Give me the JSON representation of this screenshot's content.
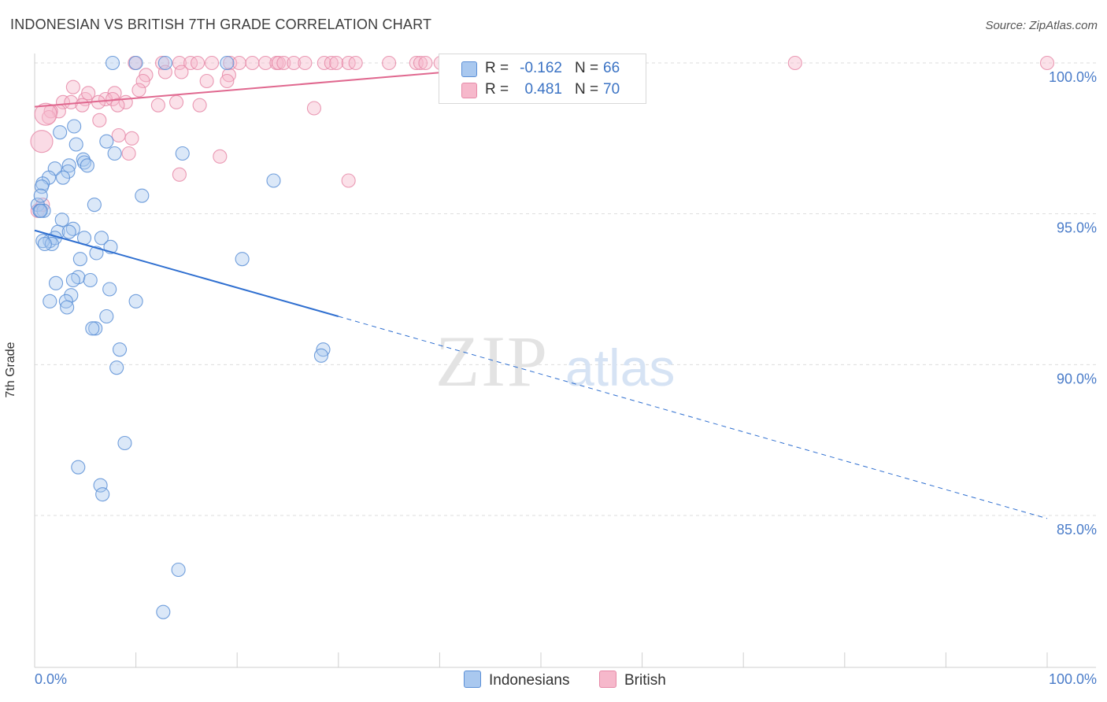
{
  "title": "INDONESIAN VS BRITISH 7TH GRADE CORRELATION CHART",
  "source": "Source: ZipAtlas.com",
  "watermark": {
    "zip": "ZIP",
    "atlas": "atlas"
  },
  "colors": {
    "blue_fill": "#a9c8ef",
    "blue_stroke": "#5b8fd6",
    "blue_line": "#2f6fd0",
    "pink_fill": "#f6b8cb",
    "pink_stroke": "#e68aa8",
    "pink_line": "#e0688f",
    "grid": "#dddddd",
    "tick_text": "#4a7cc9"
  },
  "legend": {
    "rows": [
      {
        "series": "Indonesians",
        "r_label": "R =",
        "r_value": "-0.162",
        "n_label": "N =",
        "n_value": "66",
        "color": "#a9c8ef",
        "border": "#5b8fd6"
      },
      {
        "series": "British",
        "r_label": "R =",
        "r_value": "0.481",
        "n_label": "N =",
        "n_value": "70",
        "color": "#f6b8cb",
        "border": "#e68aa8"
      }
    ]
  },
  "bottom_legend": [
    {
      "label": "Indonesians",
      "color": "#a9c8ef",
      "border": "#5b8fd6"
    },
    {
      "label": "British",
      "color": "#f6b8cb",
      "border": "#e68aa8"
    }
  ],
  "chart_data": {
    "type": "scatter",
    "title": "INDONESIAN VS BRITISH 7TH GRADE CORRELATION CHART",
    "xlabel": "",
    "ylabel": "7th Grade",
    "xlim": [
      0,
      100
    ],
    "ylim": [
      80.5,
      100.7
    ],
    "x_tick_labels": [
      "0.0%",
      "100.0%"
    ],
    "y_ticks": [
      100,
      95,
      90,
      85
    ],
    "y_tick_labels": [
      "100.0%",
      "95.0%",
      "90.0%",
      "85.0%"
    ],
    "grid": true,
    "series": [
      {
        "name": "Indonesians",
        "r": -0.162,
        "n": 66,
        "trend": {
          "x_start": 0,
          "y_start": 94.45,
          "x_solid_end": 30,
          "y_solid_end": 91.6,
          "x_end": 100,
          "y_end": 84.9
        },
        "points": [
          [
            7.7,
            100
          ],
          [
            10,
            100
          ],
          [
            12.9,
            100
          ],
          [
            19,
            100
          ],
          [
            3.9,
            97.9
          ],
          [
            4.1,
            97.3
          ],
          [
            2.5,
            97.7
          ],
          [
            4.8,
            96.8
          ],
          [
            4.9,
            96.7
          ],
          [
            5.2,
            96.6
          ],
          [
            3.4,
            96.6
          ],
          [
            2,
            96.5
          ],
          [
            3.3,
            96.4
          ],
          [
            1.4,
            96.2
          ],
          [
            2.8,
            96.2
          ],
          [
            0.8,
            96
          ],
          [
            0.7,
            95.9
          ],
          [
            7.1,
            97.4
          ],
          [
            7.9,
            97
          ],
          [
            14.6,
            97
          ],
          [
            23.6,
            96.1
          ],
          [
            10.6,
            95.6
          ],
          [
            5.9,
            95.3
          ],
          [
            0.3,
            95.3
          ],
          [
            0.9,
            95.1
          ],
          [
            0.5,
            95.1
          ],
          [
            2.7,
            94.8
          ],
          [
            3.8,
            94.5
          ],
          [
            2.3,
            94.4
          ],
          [
            3.4,
            94.4
          ],
          [
            1.5,
            94.1
          ],
          [
            2,
            94.2
          ],
          [
            4.9,
            94.2
          ],
          [
            6.6,
            94.2
          ],
          [
            0.8,
            94.1
          ],
          [
            1.7,
            94
          ],
          [
            7.5,
            93.9
          ],
          [
            6.1,
            93.7
          ],
          [
            4.5,
            93.5
          ],
          [
            20.5,
            93.5
          ],
          [
            4.3,
            92.9
          ],
          [
            3.8,
            92.8
          ],
          [
            5.5,
            92.8
          ],
          [
            2.1,
            92.7
          ],
          [
            7.4,
            92.5
          ],
          [
            3.6,
            92.3
          ],
          [
            1.5,
            92.1
          ],
          [
            3.1,
            92.1
          ],
          [
            3.2,
            91.9
          ],
          [
            10,
            92.1
          ],
          [
            7.1,
            91.6
          ],
          [
            6,
            91.2
          ],
          [
            5.7,
            91.2
          ],
          [
            8.4,
            90.5
          ],
          [
            28.5,
            90.5
          ],
          [
            28.3,
            90.3
          ],
          [
            8.1,
            89.9
          ],
          [
            8.9,
            87.4
          ],
          [
            4.3,
            86.6
          ],
          [
            6.5,
            86
          ],
          [
            6.7,
            85.7
          ],
          [
            14.2,
            83.2
          ],
          [
            12.7,
            81.8
          ],
          [
            0.6,
            95.6
          ],
          [
            0.6,
            95.1
          ],
          [
            1,
            94
          ]
        ]
      },
      {
        "name": "British",
        "r": 0.481,
        "n": 70,
        "trend": {
          "x_start": 0,
          "y_start": 98.55,
          "x_end": 52,
          "y_end": 100.02
        },
        "points": [
          [
            12.6,
            100
          ],
          [
            14.3,
            100
          ],
          [
            15.4,
            100
          ],
          [
            17.5,
            100
          ],
          [
            19.3,
            100
          ],
          [
            21.5,
            100
          ],
          [
            22.8,
            100
          ],
          [
            23.9,
            100
          ],
          [
            24.1,
            100
          ],
          [
            24.6,
            100
          ],
          [
            25.6,
            100
          ],
          [
            28.6,
            100
          ],
          [
            29.3,
            100
          ],
          [
            29.8,
            100
          ],
          [
            31,
            100
          ],
          [
            31.7,
            100
          ],
          [
            35,
            100
          ],
          [
            37.7,
            100
          ],
          [
            38.1,
            100
          ],
          [
            38.6,
            100
          ],
          [
            40.1,
            100
          ],
          [
            41.9,
            100
          ],
          [
            43.8,
            100
          ],
          [
            45.7,
            100
          ],
          [
            46.6,
            100
          ],
          [
            52.6,
            100
          ],
          [
            75.1,
            100
          ],
          [
            100,
            100
          ],
          [
            20.2,
            100
          ],
          [
            26.7,
            100
          ],
          [
            16.1,
            100
          ],
          [
            9.9,
            100
          ],
          [
            12.9,
            99.7
          ],
          [
            19.2,
            99.6
          ],
          [
            14.5,
            99.7
          ],
          [
            11,
            99.6
          ],
          [
            17,
            99.4
          ],
          [
            19,
            99.4
          ],
          [
            10.7,
            99.4
          ],
          [
            3.8,
            99.2
          ],
          [
            7.9,
            99
          ],
          [
            10.3,
            99.1
          ],
          [
            7,
            98.8
          ],
          [
            5,
            98.8
          ],
          [
            7.7,
            98.8
          ],
          [
            2.8,
            98.7
          ],
          [
            9,
            98.7
          ],
          [
            3.6,
            98.7
          ],
          [
            6.3,
            98.7
          ],
          [
            4.7,
            98.6
          ],
          [
            14,
            98.7
          ],
          [
            16.3,
            98.6
          ],
          [
            12.2,
            98.6
          ],
          [
            8.2,
            98.6
          ],
          [
            27.6,
            98.5
          ],
          [
            2.4,
            98.4
          ],
          [
            1.6,
            98.4
          ],
          [
            6.4,
            98.1
          ],
          [
            1.4,
            98.2
          ],
          [
            8.3,
            97.6
          ],
          [
            9.6,
            97.5
          ],
          [
            9.3,
            97
          ],
          [
            18.3,
            96.9
          ],
          [
            14.3,
            96.3
          ],
          [
            31,
            96.1
          ],
          [
            0.7,
            97.4
          ],
          [
            1.1,
            98.3
          ],
          [
            0.3,
            95.1
          ],
          [
            0.8,
            95.3
          ],
          [
            5.3,
            99
          ]
        ]
      }
    ]
  }
}
